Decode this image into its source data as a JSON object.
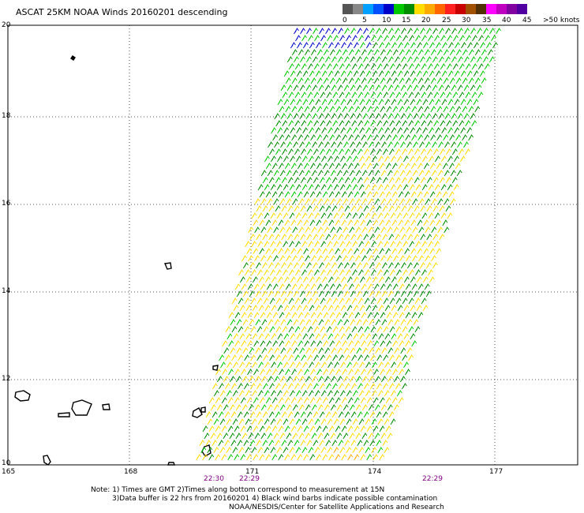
{
  "title": "ASCAT 25KM NOAA Winds 20160201 descending",
  "legend": {
    "colors": [
      "#555555",
      "#888888",
      "#00a0ff",
      "#0050ff",
      "#0000c8",
      "#00c800",
      "#008c00",
      "#ffdd00",
      "#ffaa00",
      "#ff6600",
      "#ff2020",
      "#c80000",
      "#a05000",
      "#503000",
      "#ff00ff",
      "#c000c0",
      "#8000a0",
      "#5000a0"
    ],
    "labels": [
      "0",
      "5",
      "10",
      "15",
      "20",
      "25",
      "30",
      "35",
      "40",
      "45",
      ">50 knots"
    ]
  },
  "axes": {
    "lat_labels": [
      "20",
      "18",
      "16",
      "14",
      "12",
      "10"
    ],
    "lon_labels": [
      "165",
      "168",
      "171",
      "174",
      "177"
    ]
  },
  "times": [
    "22:30",
    "22:29",
    "22:29"
  ],
  "notes": [
    "Note: 1) Times are GMT 2)Times along bottom correspond to measurement at 15N",
    "3)Data buffer is 22 hrs from 20160201 4) Black wind barbs indicate possible contamination",
    "NOAA/NESDIS/Center for Satellite Applications and Research"
  ]
}
